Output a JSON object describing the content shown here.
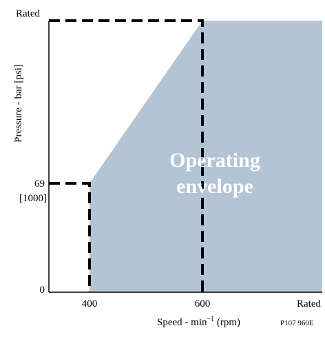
{
  "chart_data": {
    "type": "area",
    "title": "",
    "xlabel": "Speed - min",
    "xlabel_superscript": "−1",
    "xlabel_unit": " (rpm)",
    "ylabel": "Pressure - bar [psi]",
    "figure_code": "P107 960E",
    "x_ticks": [
      {
        "value": 0,
        "label": ""
      },
      {
        "value": 400,
        "label": "400"
      },
      {
        "value": 600,
        "label": "600"
      },
      {
        "value": 1000,
        "label": "Rated"
      }
    ],
    "y_ticks": [
      {
        "value": 0,
        "label": "0"
      },
      {
        "value": 69,
        "label": "69",
        "label2": "[1000]"
      },
      {
        "value": 345,
        "label": "Rated"
      }
    ],
    "xlim": [
      0,
      1000
    ],
    "ylim": [
      0,
      345
    ],
    "region": {
      "label_line1": "Operating",
      "label_line2": "envelope",
      "fill": "#b3c4d4",
      "boundary": [
        {
          "x": 400,
          "y": 0
        },
        {
          "x": 400,
          "y": 69
        },
        {
          "x": 600,
          "y": 345
        },
        {
          "x": 1000,
          "y": 345
        },
        {
          "x": 1000,
          "y": 0
        }
      ]
    },
    "dashed_lines": [
      {
        "points": [
          {
            "x": 0,
            "y": 345
          },
          {
            "x": 600,
            "y": 345
          },
          {
            "x": 600,
            "y": 0
          }
        ]
      },
      {
        "points": [
          {
            "x": 0,
            "y": 69
          },
          {
            "x": 400,
            "y": 69
          },
          {
            "x": 400,
            "y": 0
          }
        ]
      }
    ],
    "grid": false,
    "legend": "none"
  }
}
